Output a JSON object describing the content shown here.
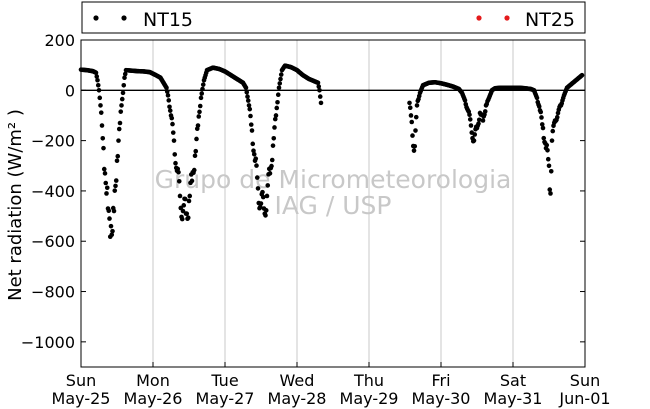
{
  "chart_data": {
    "type": "scatter",
    "ylabel": "Net radiation (W/m² )",
    "ylim": [
      -1100,
      200
    ],
    "yticks": [
      200,
      0,
      -200,
      -400,
      -600,
      -800,
      -1000
    ],
    "ytick_labels": [
      "200",
      "0",
      "−200",
      "−400",
      "−600",
      "−800",
      "−1000"
    ],
    "xlim": [
      "2013-05-25",
      "2013-06-01"
    ],
    "xticks": [
      {
        "day": "Sun",
        "date": "May-25"
      },
      {
        "day": "Mon",
        "date": "May-26"
      },
      {
        "day": "Tue",
        "date": "May-27"
      },
      {
        "day": "Wed",
        "date": "May-28"
      },
      {
        "day": "Thu",
        "date": "May-29"
      },
      {
        "day": "Fri",
        "date": "May-30"
      },
      {
        "day": "Sat",
        "date": "May-31"
      },
      {
        "day": "Sun",
        "date": "Jun-01"
      }
    ],
    "grid": "vertical",
    "legend_position": "top",
    "zero_line": true,
    "watermark": [
      "Grupo de Micrometeorologia",
      "IAG / USP"
    ],
    "series": [
      {
        "name": "NT15",
        "color": "#000000",
        "points": [
          [
            "2013-05-25 00:00",
            82
          ],
          [
            "2013-05-25 02:00",
            80
          ],
          [
            "2013-05-25 04:00",
            76
          ],
          [
            "2013-05-25 05:00",
            70
          ],
          [
            "2013-05-25 05:30",
            40
          ],
          [
            "2013-05-25 06:00",
            0
          ],
          [
            "2013-05-25 06:30",
            -60
          ],
          [
            "2013-05-25 07:00",
            -140
          ],
          [
            "2013-05-25 07:30",
            -230
          ],
          [
            "2013-05-25 08:00",
            -330
          ],
          [
            "2013-05-25 08:30",
            -410
          ],
          [
            "2013-05-25 09:00",
            -470
          ],
          [
            "2013-05-25 09:30",
            -510
          ],
          [
            "2013-05-25 10:00",
            -540
          ],
          [
            "2013-05-25 10:30",
            -560
          ],
          [
            "2013-05-25 11:00",
            -480
          ],
          [
            "2013-05-25 11:30",
            -380
          ],
          [
            "2013-05-25 12:00",
            -280
          ],
          [
            "2013-05-25 12:30",
            -200
          ],
          [
            "2013-05-25 13:00",
            -130
          ],
          [
            "2013-05-25 13:30",
            -60
          ],
          [
            "2013-05-25 14:00",
            -10
          ],
          [
            "2013-05-25 14:30",
            50
          ],
          [
            "2013-05-25 15:00",
            80
          ],
          [
            "2013-05-25 17:00",
            78
          ],
          [
            "2013-05-25 19:00",
            76
          ],
          [
            "2013-05-25 21:00",
            75
          ],
          [
            "2013-05-25 23:00",
            72
          ],
          [
            "2013-05-26 01:00",
            60
          ],
          [
            "2013-05-26 02:30",
            50
          ],
          [
            "2013-05-26 03:30",
            30
          ],
          [
            "2013-05-26 04:30",
            10
          ],
          [
            "2013-05-26 05:00",
            -20
          ],
          [
            "2013-05-26 06:00",
            -100
          ],
          [
            "2013-05-26 07:00",
            -200
          ],
          [
            "2013-05-26 08:00",
            -320
          ],
          [
            "2013-05-26 09:00",
            -420
          ],
          [
            "2013-05-26 10:00",
            -480
          ],
          [
            "2013-05-26 11:00",
            -490
          ],
          [
            "2013-05-26 12:00",
            -440
          ],
          [
            "2013-05-26 13:00",
            -360
          ],
          [
            "2013-05-26 14:00",
            -260
          ],
          [
            "2013-05-26 15:00",
            -140
          ],
          [
            "2013-05-26 16:00",
            -30
          ],
          [
            "2013-05-26 17:00",
            40
          ],
          [
            "2013-05-26 18:00",
            80
          ],
          [
            "2013-05-26 20:00",
            90
          ],
          [
            "2013-05-26 22:00",
            85
          ],
          [
            "2013-05-27 00:00",
            75
          ],
          [
            "2013-05-27 02:00",
            60
          ],
          [
            "2013-05-27 04:00",
            45
          ],
          [
            "2013-05-27 06:00",
            30
          ],
          [
            "2013-05-27 07:00",
            10
          ],
          [
            "2013-05-27 08:00",
            -60
          ],
          [
            "2013-05-27 09:00",
            -160
          ],
          [
            "2013-05-27 10:00",
            -280
          ],
          [
            "2013-05-27 11:00",
            -390
          ],
          [
            "2013-05-27 12:00",
            -450
          ],
          [
            "2013-05-27 13:00",
            -470
          ],
          [
            "2013-05-27 14:00",
            -420
          ],
          [
            "2013-05-27 15:00",
            -330
          ],
          [
            "2013-05-27 16:00",
            -220
          ],
          [
            "2013-05-27 17:00",
            -100
          ],
          [
            "2013-05-27 18:00",
            10
          ],
          [
            "2013-05-27 19:00",
            80
          ],
          [
            "2013-05-27 20:00",
            98
          ],
          [
            "2013-05-27 22:00",
            92
          ],
          [
            "2013-05-28 00:00",
            80
          ],
          [
            "2013-05-28 02:00",
            60
          ],
          [
            "2013-05-28 04:00",
            45
          ],
          [
            "2013-05-28 06:00",
            35
          ],
          [
            "2013-05-28 07:00",
            30
          ],
          [
            "2013-05-28 07:30",
            0
          ],
          [
            "2013-05-28 08:00",
            -50
          ],
          [
            "2013-05-29 13:30",
            -50
          ],
          [
            "2013-05-29 14:00",
            -100
          ],
          [
            "2013-05-29 14:30",
            -180
          ],
          [
            "2013-05-29 15:00",
            -240
          ],
          [
            "2013-05-29 15:30",
            -160
          ],
          [
            "2013-05-29 16:00",
            -60
          ],
          [
            "2013-05-29 17:00",
            -10
          ],
          [
            "2013-05-29 18:00",
            20
          ],
          [
            "2013-05-29 20:00",
            30
          ],
          [
            "2013-05-29 22:00",
            32
          ],
          [
            "2013-05-30 00:00",
            28
          ],
          [
            "2013-05-30 02:00",
            22
          ],
          [
            "2013-05-30 04:00",
            15
          ],
          [
            "2013-05-30 06:00",
            5
          ],
          [
            "2013-05-30 07:00",
            -10
          ],
          [
            "2013-05-30 08:00",
            -40
          ],
          [
            "2013-05-30 09:00",
            -80
          ],
          [
            "2013-05-30 10:00",
            -140
          ],
          [
            "2013-05-30 11:00",
            -200
          ],
          [
            "2013-05-30 12:00",
            -150
          ],
          [
            "2013-05-30 13:00",
            -90
          ],
          [
            "2013-05-30 14:00",
            -120
          ],
          [
            "2013-05-30 15:00",
            -60
          ],
          [
            "2013-05-30 16:00",
            -30
          ],
          [
            "2013-05-30 17:00",
            0
          ],
          [
            "2013-05-30 18:00",
            8
          ],
          [
            "2013-05-30 20:00",
            10
          ],
          [
            "2013-05-30 22:00",
            10
          ],
          [
            "2013-05-31 00:00",
            10
          ],
          [
            "2013-05-31 02:00",
            10
          ],
          [
            "2013-05-31 04:00",
            8
          ],
          [
            "2013-05-31 06:00",
            5
          ],
          [
            "2013-05-31 07:00",
            0
          ],
          [
            "2013-05-31 08:00",
            -30
          ],
          [
            "2013-05-31 09:00",
            -80
          ],
          [
            "2013-05-31 10:00",
            -150
          ],
          [
            "2013-05-31 11:00",
            -230
          ],
          [
            "2013-05-31 12:00",
            -300
          ],
          [
            "2013-05-31 12:30",
            -410
          ],
          [
            "2013-05-31 13:00",
            -200
          ],
          [
            "2013-05-31 14:00",
            -120
          ],
          [
            "2013-05-31 15:00",
            -90
          ],
          [
            "2013-05-31 16:00",
            -60
          ],
          [
            "2013-05-31 17:00",
            -20
          ],
          [
            "2013-05-31 18:00",
            10
          ],
          [
            "2013-05-31 20:00",
            30
          ],
          [
            "2013-05-31 22:00",
            50
          ],
          [
            "2013-05-31 23:00",
            60
          ]
        ]
      },
      {
        "name": "NT25",
        "color": "#e41a1c",
        "points": []
      }
    ]
  }
}
